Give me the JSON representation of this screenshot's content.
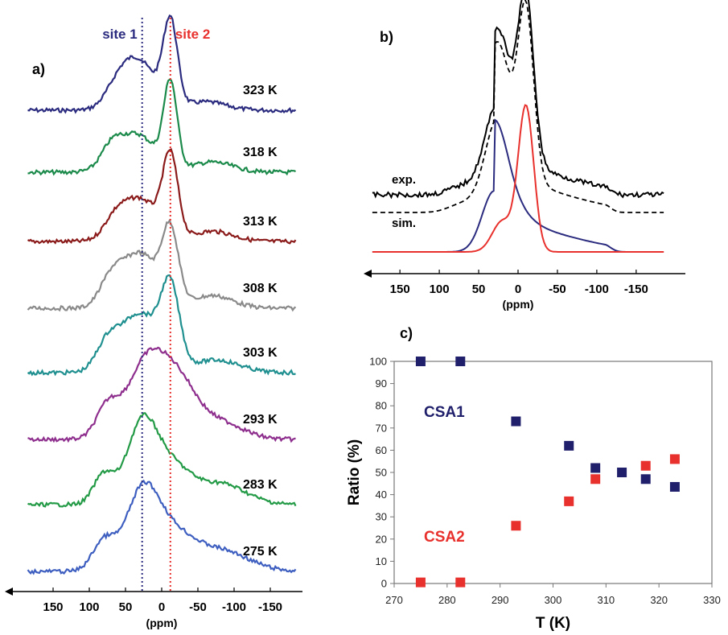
{
  "colors": {
    "navy": "#2b2b7f",
    "green": "#1b8a4a",
    "darkred": "#8b1a1a",
    "gray": "#8a8a8a",
    "teal": "#1f8f8f",
    "purple": "#8e2f8e",
    "green2": "#239a46",
    "blue": "#3e5fc0",
    "red": "#e8302c",
    "black": "#000000",
    "csa1": "#1f1f6b",
    "csa2": "#e8302c"
  },
  "chart_data": [
    {
      "panel": "a)",
      "type": "line",
      "xlabel": "(ppm)",
      "x_ticks": [
        150,
        100,
        50,
        0,
        -50,
        -100,
        -150
      ],
      "x_tick_labels": [
        "150",
        "100",
        "50",
        "0",
        "-50",
        "-100",
        "-150"
      ],
      "xlim": [
        190,
        -190
      ],
      "x_reversed": true,
      "guides": [
        {
          "label": "site 1",
          "x": 27
        },
        {
          "label": "site 2",
          "x": -12
        }
      ],
      "series": [
        {
          "name": "323 K",
          "color_key": "navy"
        },
        {
          "name": "318 K",
          "color_key": "green"
        },
        {
          "name": "313 K",
          "color_key": "darkred"
        },
        {
          "name": "308 K",
          "color_key": "gray"
        },
        {
          "name": "303 K",
          "color_key": "teal"
        },
        {
          "name": "293 K",
          "color_key": "purple"
        },
        {
          "name": "283 K",
          "color_key": "green2"
        },
        {
          "name": "275 K",
          "color_key": "blue"
        }
      ]
    },
    {
      "panel": "b)",
      "type": "line",
      "xlabel": "(ppm)",
      "x_ticks": [
        150,
        100,
        50,
        0,
        -50,
        -100,
        -150
      ],
      "x_tick_labels": [
        "150",
        "100",
        "50",
        "0",
        "-50",
        "-100",
        "-150"
      ],
      "xlim": [
        190,
        -190
      ],
      "x_reversed": true,
      "series": [
        {
          "name": "exp.",
          "color_key": "black",
          "style": "solid"
        },
        {
          "name": "sim.",
          "color_key": "black",
          "style": "dashed"
        },
        {
          "name": "",
          "color_key": "navy",
          "style": "solid"
        },
        {
          "name": "",
          "color_key": "red",
          "style": "solid"
        }
      ]
    },
    {
      "panel": "c)",
      "type": "scatter",
      "xlabel": "T (K)",
      "ylabel": "Ratio (%)",
      "xlim": [
        270,
        330
      ],
      "ylim": [
        0,
        100
      ],
      "x_ticks": [
        270,
        280,
        290,
        300,
        310,
        320,
        330
      ],
      "y_ticks": [
        0,
        10,
        20,
        30,
        40,
        50,
        60,
        70,
        80,
        90,
        100
      ],
      "grid": false,
      "series": [
        {
          "name": "CSA1",
          "color_key": "csa1",
          "points": [
            [
              275,
              100
            ],
            [
              282.5,
              100
            ],
            [
              293,
              73
            ],
            [
              303,
              62
            ],
            [
              308,
              52
            ],
            [
              313,
              50
            ],
            [
              317.5,
              47
            ],
            [
              323,
              43.5
            ]
          ]
        },
        {
          "name": "CSA2",
          "color_key": "csa2",
          "points": [
            [
              275,
              0.5
            ],
            [
              282.5,
              0.5
            ],
            [
              293,
              26
            ],
            [
              303,
              37
            ],
            [
              308,
              47
            ],
            [
              317.5,
              53
            ],
            [
              323,
              56
            ]
          ]
        }
      ]
    }
  ]
}
